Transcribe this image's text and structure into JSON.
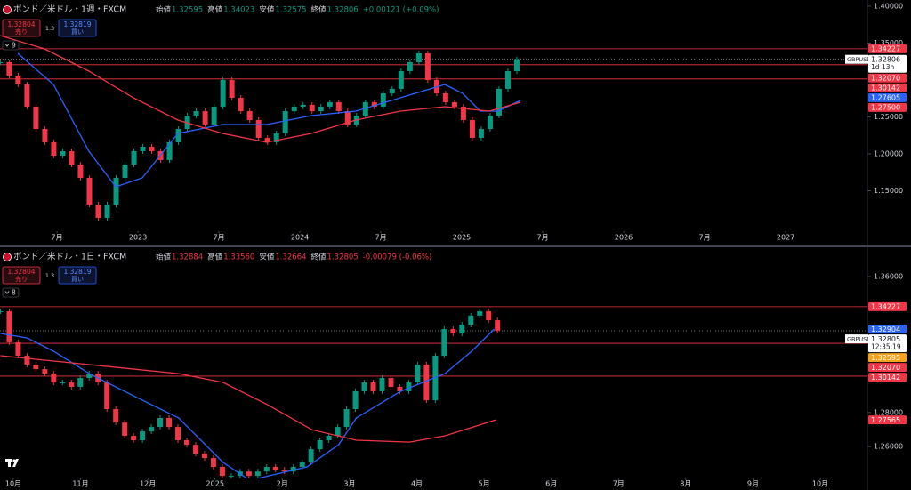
{
  "chart_data": [
    {
      "type": "candlestick",
      "title": "ポンド／米ドル・1週・FXCM",
      "ohlc": {
        "open_label": "始値",
        "open": "1.32595",
        "high_label": "高値",
        "high": "1.34023",
        "low_label": "安値",
        "low": "1.32575",
        "close_label": "終値",
        "close": "1.32806",
        "change": "+0.00121 (+0.09%)"
      },
      "ohlc_color": "#089981",
      "trade": {
        "sell_price": "1.32804",
        "sell_label": "売り",
        "spread": "1.3",
        "buy_price": "1.32819",
        "buy_label": "買い"
      },
      "indicator_count": "9",
      "up_color": "#089981",
      "down_color": "#f23645",
      "x": [
        2022.15,
        2022.205,
        2022.26,
        2022.315,
        2022.37,
        2022.425,
        2022.48,
        2022.535,
        2022.59,
        2022.645,
        2022.7,
        2022.755,
        2022.81,
        2022.865,
        2022.92,
        2022.975,
        2023.03,
        2023.085,
        2023.14,
        2023.195,
        2023.25,
        2023.305,
        2023.36,
        2023.415,
        2023.47,
        2023.525,
        2023.58,
        2023.635,
        2023.69,
        2023.745,
        2023.8,
        2023.855,
        2023.91,
        2023.965,
        2024.02,
        2024.075,
        2024.13,
        2024.185,
        2024.24,
        2024.295,
        2024.35,
        2024.405,
        2024.46,
        2024.515,
        2024.57,
        2024.625,
        2024.68,
        2024.735,
        2024.79,
        2024.845,
        2024.9,
        2024.955,
        2025.01,
        2025.065,
        2025.12,
        2025.175,
        2025.23,
        2025.285,
        2025.34
      ],
      "values": [
        1.3241,
        1.306,
        1.294,
        1.2639,
        1.2337,
        1.2157,
        1.1976,
        1.2036,
        1.1855,
        1.1675,
        1.1313,
        1.1133,
        1.1313,
        1.1675,
        1.1855,
        1.2036,
        1.2096,
        1.2036,
        1.1916,
        1.2157,
        1.2337,
        1.2518,
        1.2578,
        1.2398,
        1.2639,
        1.3,
        1.2759,
        1.2578,
        1.2458,
        1.2217,
        1.2157,
        1.2277,
        1.2578,
        1.2639,
        1.2663,
        1.2578,
        1.2639,
        1.2699,
        1.2578,
        1.2398,
        1.2518,
        1.2699,
        1.2639,
        1.2819,
        1.288,
        1.312,
        1.3241,
        1.3361,
        1.3,
        1.2819,
        1.2699,
        1.2639,
        1.2458,
        1.2217,
        1.2337,
        1.2518,
        1.288,
        1.312,
        1.3281
      ],
      "series": [
        {
          "color": "#2962ff",
          "x": [
            2022.258,
            2022.478,
            2022.697,
            2022.862,
            2023.027,
            2023.247,
            2023.522,
            2023.796,
            2024.071,
            2024.346,
            2024.621,
            2024.895,
            2025.005,
            2025.115,
            2025.225,
            2025.362
          ],
          "values": [
            1.3361,
            1.294,
            1.2036,
            1.1554,
            1.1675,
            1.2277,
            1.2398,
            1.2398,
            1.2518,
            1.2578,
            1.2759,
            1.294,
            1.2819,
            1.2578,
            1.2578,
            1.2723
          ]
        },
        {
          "color": "#f23645",
          "x": [
            2022.148,
            2022.423,
            2022.697,
            2022.972,
            2023.247,
            2023.522,
            2023.796,
            2024.071,
            2024.346,
            2024.621,
            2024.895,
            2025.17,
            2025.362
          ],
          "values": [
            1.3602,
            1.3422,
            1.312,
            1.2759,
            1.2458,
            1.2277,
            1.2157,
            1.2277,
            1.2458,
            1.2578,
            1.2639,
            1.2578,
            1.2699
          ]
        }
      ],
      "levels": [
        1.34227,
        1.3207,
        1.30142
      ],
      "level_color": "#f23645",
      "price_tags": [
        {
          "value": 1.34227,
          "label": "1.34227",
          "color": "#f23645"
        },
        {
          "value": 1.3207,
          "label": "1.32070",
          "color": "#f23645"
        },
        {
          "value": 1.30142,
          "label": "1.30142",
          "color": "#f23645"
        },
        {
          "value": 1.27605,
          "label": "1.27605",
          "color": "#2962ff"
        },
        {
          "value": 1.275,
          "label": "1.27500",
          "color": "#f23645"
        }
      ],
      "current": {
        "symbol": "GBPUSD",
        "value": 1.32806,
        "label": "1.32806",
        "countdown": "1d 13h"
      },
      "xlim": [
        2022.148,
        2027.505
      ],
      "xticks": [
        {
          "value": 2022.5,
          "label": "7月"
        },
        2023,
        {
          "value": 2023.5,
          "label": "7月"
        },
        2024,
        {
          "value": 2024.5,
          "label": "7月"
        },
        2025,
        {
          "value": 2025.5,
          "label": "7月"
        },
        2026,
        {
          "value": 2026.5,
          "label": "7月"
        },
        2027
      ],
      "ylim": [
        1.0952,
        1.4084
      ],
      "yticks": [
        {
          "value": 1.15,
          "label": "1.15000"
        },
        {
          "value": 1.2,
          "label": "1.20000"
        },
        {
          "value": 1.25,
          "label": "1.25000"
        },
        {
          "value": 1.35,
          "label": "1.35000"
        },
        {
          "value": 1.4,
          "label": "1.40000"
        }
      ]
    },
    {
      "type": "candlestick",
      "title": "ポンド／米ドル・1日・FXCM",
      "ohlc": {
        "open_label": "始値",
        "open": "1.32884",
        "high_label": "高値",
        "high": "1.33560",
        "low_label": "安値",
        "low": "1.32664",
        "close_label": "終値",
        "close": "1.32805",
        "change": "-0.00079 (-0.06%)"
      },
      "ohlc_color": "#f23645",
      "trade": {
        "sell_price": "1.32804",
        "sell_label": "売り",
        "spread": "1.3",
        "buy_price": "1.32819",
        "buy_label": "買い"
      },
      "indicator_count": "8",
      "up_color": "#089981",
      "down_color": "#f23645",
      "x": [
        2024.734,
        2024.745,
        2024.756,
        2024.767,
        2024.778,
        2024.789,
        2024.8,
        2024.811,
        2024.822,
        2024.833,
        2024.844,
        2024.855,
        2024.866,
        2024.877,
        2024.888,
        2024.899,
        2024.91,
        2024.921,
        2024.932,
        2024.943,
        2024.954,
        2024.965,
        2024.976,
        2024.987,
        2024.998,
        2025.009,
        2025.02,
        2025.031,
        2025.042,
        2025.053,
        2025.064,
        2025.075,
        2025.086,
        2025.097,
        2025.108,
        2025.119,
        2025.13,
        2025.141,
        2025.152,
        2025.163,
        2025.174,
        2025.185,
        2025.196,
        2025.207,
        2025.218,
        2025.229,
        2025.24,
        2025.251,
        2025.262,
        2025.273,
        2025.284,
        2025.295,
        2025.306,
        2025.317,
        2025.328,
        2025.339,
        2025.35
      ],
      "values": [
        1.3396,
        1.3213,
        1.3134,
        1.3082,
        1.3055,
        1.3029,
        1.2977,
        1.2977,
        1.2951,
        1.3003,
        1.3029,
        1.2977,
        1.282,
        1.2741,
        1.2663,
        1.2637,
        1.2689,
        1.2715,
        1.2768,
        1.2715,
        1.2637,
        1.261,
        1.2558,
        1.2532,
        1.248,
        1.2427,
        1.2427,
        1.2453,
        1.2427,
        1.2453,
        1.248,
        1.2464,
        1.2453,
        1.248,
        1.2506,
        1.2584,
        1.2637,
        1.2663,
        1.2715,
        1.282,
        1.2925,
        1.2977,
        1.2925,
        1.3003,
        1.2951,
        1.2925,
        1.2977,
        1.3082,
        1.2872,
        1.3134,
        1.3291,
        1.3265,
        1.3317,
        1.337,
        1.3396,
        1.3343,
        1.3281
      ],
      "series": [
        {
          "color": "#2962ff",
          "x": [
            2024.734,
            2024.767,
            2024.8,
            2024.844,
            2024.899,
            2024.955,
            2025.01,
            2025.043,
            2025.114,
            2025.153,
            2025.175,
            2025.23,
            2025.285,
            2025.318,
            2025.346
          ],
          "values": [
            1.3265,
            1.3239,
            1.316,
            1.3029,
            1.2898,
            1.2768,
            1.2506,
            1.2401,
            1.248,
            1.261,
            1.2768,
            1.2925,
            1.3029,
            1.316,
            1.3291
          ]
        },
        {
          "color": "#f23645",
          "x": [
            2024.734,
            2024.844,
            2024.955,
            2025.01,
            2025.065,
            2025.12,
            2025.175,
            2025.241,
            2025.285,
            2025.348
          ],
          "values": [
            1.3134,
            1.3082,
            1.3029,
            1.2977,
            1.2846,
            1.2699,
            1.2637,
            1.2626,
            1.2663,
            1.2757
          ]
        }
      ],
      "levels": [
        1.34227,
        1.3207,
        1.30142
      ],
      "level_color": "#f23645",
      "price_tags": [
        {
          "value": 1.34227,
          "label": "1.34227",
          "color": "#f23645"
        },
        {
          "value": 1.32904,
          "label": "1.32904",
          "color": "#2962ff"
        },
        {
          "value": 1.32595,
          "label": "1.32595",
          "color": "#f7a21b"
        },
        {
          "value": 1.3207,
          "label": "1.32070",
          "color": "#f23645"
        },
        {
          "value": 1.30142,
          "label": "1.30142",
          "color": "#f23645"
        },
        {
          "value": 1.27565,
          "label": "1.27565",
          "color": "#f23645"
        }
      ],
      "current": {
        "symbol": "GBPUSD",
        "value": 1.32805,
        "label": "1.32805",
        "countdown": "12:35:19"
      },
      "xlim": [
        2024.7335,
        2025.8084
      ],
      "xticks": [
        {
          "value": 2024.75,
          "label": "10月"
        },
        {
          "value": 2024.8333,
          "label": "11月"
        },
        {
          "value": 2024.9167,
          "label": "12月"
        },
        2025,
        {
          "value": 2025.0833,
          "label": "2月"
        },
        {
          "value": 2025.1667,
          "label": "3月"
        },
        {
          "value": 2025.25,
          "label": "4月"
        },
        {
          "value": 2025.3333,
          "label": "5月"
        },
        {
          "value": 2025.4167,
          "label": "6月"
        },
        {
          "value": 2025.5,
          "label": "7月"
        },
        {
          "value": 2025.5833,
          "label": "8月"
        },
        {
          "value": 2025.6667,
          "label": "9月"
        },
        {
          "value": 2025.75,
          "label": "10月"
        }
      ],
      "ylim": [
        1.2412,
        1.3762
      ],
      "yticks": [
        {
          "value": 1.26,
          "label": "1.26000"
        },
        {
          "value": 1.28,
          "label": "1.28000"
        },
        {
          "value": 1.36,
          "label": "1.36000"
        }
      ]
    }
  ]
}
